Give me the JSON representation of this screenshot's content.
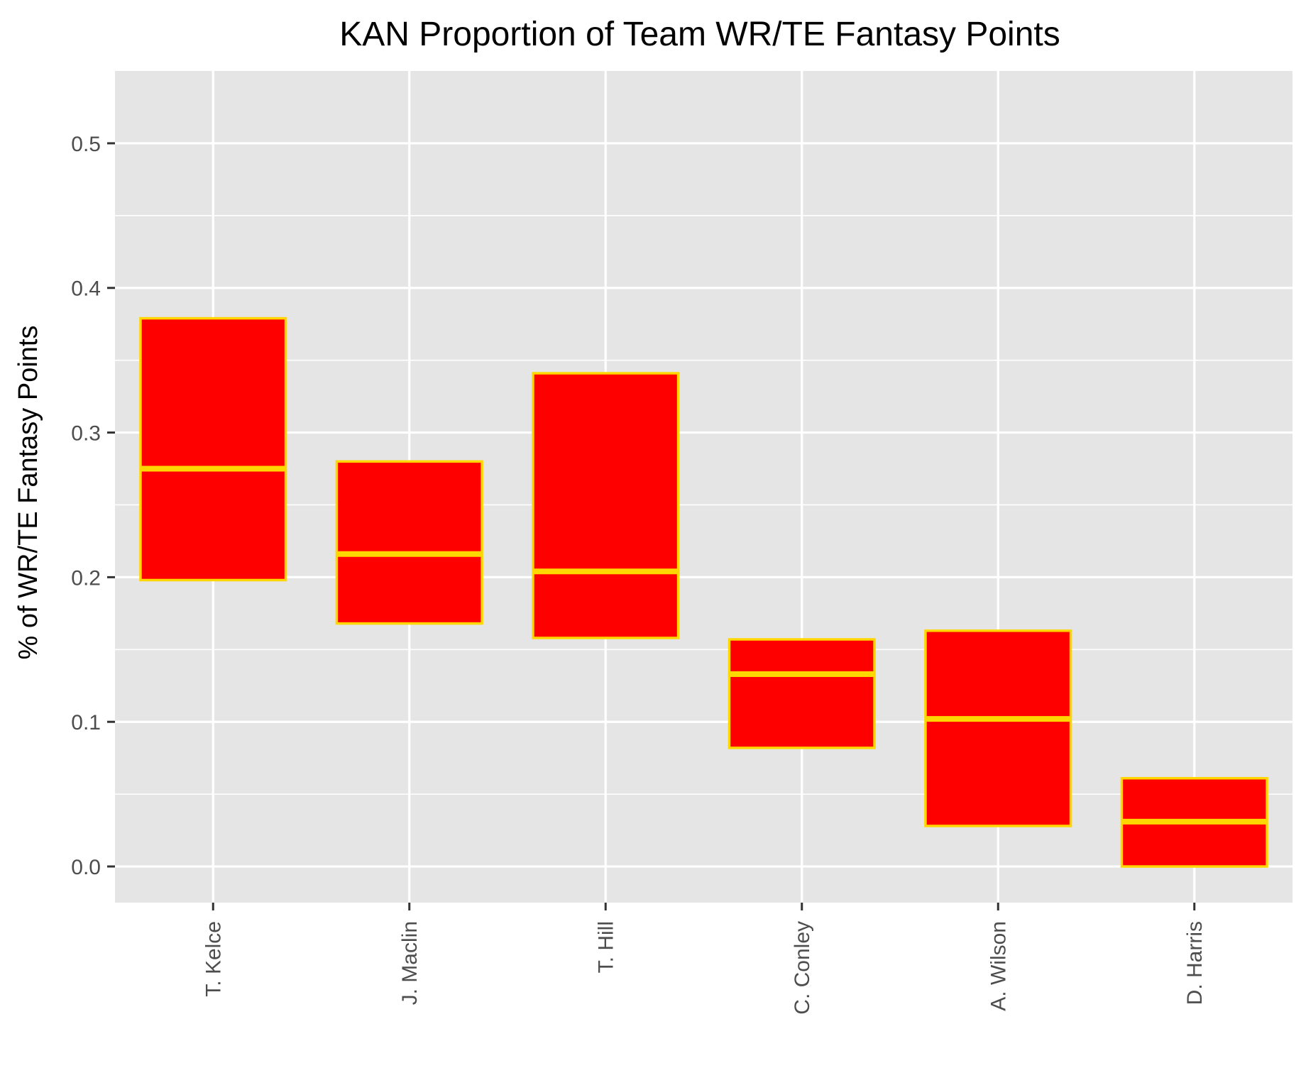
{
  "chart_data": {
    "type": "box",
    "title": "KAN Proportion of Team WR/TE Fantasy Points",
    "xlabel": "",
    "ylabel": "% of WR/TE Fantasy Points",
    "ylim": [
      -0.025,
      0.55
    ],
    "yticks": [
      "0.0",
      "0.1",
      "0.2",
      "0.3",
      "0.4",
      "0.5"
    ],
    "ytick_values": [
      0.0,
      0.1,
      0.2,
      0.3,
      0.4,
      0.5
    ],
    "categories": [
      "T. Kelce",
      "J. Maclin",
      "T. Hill",
      "C. Conley",
      "A. Wilson",
      "D. Harris"
    ],
    "boxes": [
      {
        "q1": 0.198,
        "median": 0.275,
        "q3": 0.379
      },
      {
        "q1": 0.168,
        "median": 0.216,
        "q3": 0.28
      },
      {
        "q1": 0.158,
        "median": 0.204,
        "q3": 0.341
      },
      {
        "q1": 0.082,
        "median": 0.133,
        "q3": 0.157
      },
      {
        "q1": 0.028,
        "median": 0.102,
        "q3": 0.163
      },
      {
        "q1": 0.0,
        "median": 0.031,
        "q3": 0.061
      }
    ],
    "grid": true,
    "legend": "none",
    "colors": {
      "box_fill": "#ff0000",
      "box_outline": "#ffd700",
      "panel_background": "#e5e5e5",
      "grid": "#ffffff",
      "tick_text": "#4d4d4d"
    }
  }
}
